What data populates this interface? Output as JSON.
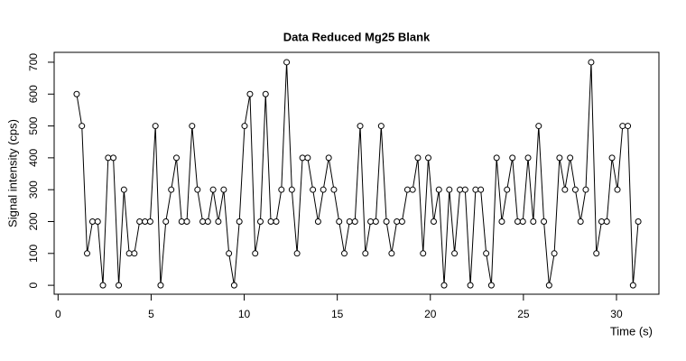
{
  "chart_data": {
    "type": "line",
    "title": "Data Reduced Mg25 Blank",
    "x_label": "Time (s)",
    "y_label": "Signal intensity (cps)",
    "x": [
      1.0,
      1.28,
      1.56,
      1.85,
      2.13,
      2.41,
      2.69,
      2.97,
      3.26,
      3.54,
      3.82,
      4.1,
      4.38,
      4.67,
      4.95,
      5.23,
      5.51,
      5.79,
      6.08,
      6.36,
      6.64,
      6.92,
      7.2,
      7.49,
      7.77,
      8.05,
      8.33,
      8.61,
      8.9,
      9.18,
      9.46,
      9.74,
      10.02,
      10.31,
      10.59,
      10.87,
      11.15,
      11.43,
      11.72,
      12.0,
      12.28,
      12.56,
      12.84,
      13.13,
      13.41,
      13.69,
      13.97,
      14.25,
      14.54,
      14.82,
      15.1,
      15.38,
      15.66,
      15.95,
      16.23,
      16.51,
      16.79,
      17.07,
      17.36,
      17.64,
      17.92,
      18.2,
      18.48,
      18.77,
      19.05,
      19.33,
      19.61,
      19.89,
      20.18,
      20.46,
      20.74,
      21.02,
      21.3,
      21.59,
      21.87,
      22.15,
      22.43,
      22.71,
      23.0,
      23.28,
      23.56,
      23.84,
      24.12,
      24.41,
      24.69,
      24.97,
      25.25,
      25.53,
      25.82,
      26.1,
      26.38,
      26.66,
      26.94,
      27.23,
      27.51,
      27.79,
      28.07,
      28.35,
      28.64,
      28.92,
      29.2,
      29.48,
      29.76,
      30.05,
      30.33,
      30.61,
      30.89,
      31.17
    ],
    "values": [
      600,
      500,
      100,
      200,
      200,
      0,
      400,
      400,
      0,
      300,
      100,
      100,
      200,
      200,
      200,
      500,
      0,
      200,
      300,
      400,
      200,
      200,
      500,
      300,
      200,
      200,
      300,
      200,
      300,
      100,
      0,
      200,
      500,
      600,
      100,
      200,
      600,
      200,
      200,
      300,
      700,
      300,
      100,
      400,
      400,
      300,
      200,
      300,
      400,
      300,
      200,
      100,
      200,
      200,
      500,
      100,
      200,
      200,
      500,
      200,
      100,
      200,
      200,
      300,
      300,
      400,
      100,
      400,
      200,
      300,
      0,
      300,
      100,
      300,
      300,
      0,
      300,
      300,
      100,
      0,
      400,
      200,
      300,
      400,
      200,
      200,
      400,
      200,
      500,
      200,
      0,
      100,
      400,
      300,
      400,
      300,
      200,
      300,
      700,
      100,
      200,
      200,
      400,
      300,
      500,
      500,
      0,
      200
    ],
    "color": "#000000",
    "xlim": [
      -0.21,
      32.28
    ],
    "xticks": [
      0,
      5,
      10,
      15,
      20,
      25,
      30
    ],
    "ylim": [
      -28,
      731
    ],
    "yticks": [
      0,
      100,
      200,
      300,
      400,
      500,
      600,
      700
    ]
  }
}
